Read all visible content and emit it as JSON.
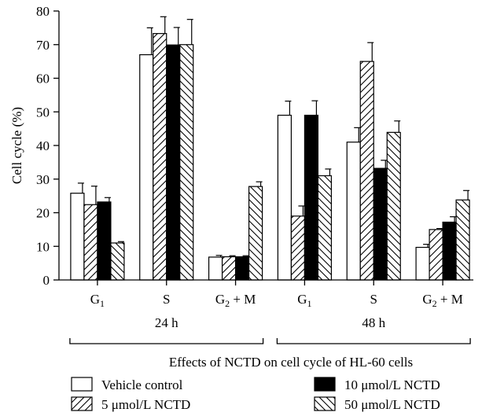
{
  "chart_data": {
    "type": "bar",
    "title": "",
    "xlabel": "Effects of NCTD on cell cycle of HL-60 cells",
    "ylabel": "Cell cycle (%)",
    "ylim": [
      0,
      80
    ],
    "yticks": [
      "0",
      "10",
      "20",
      "30",
      "40",
      "50",
      "60",
      "70",
      "80"
    ],
    "categories": [
      {
        "base": "G",
        "sub": "1",
        "rest": ""
      },
      {
        "base": "S",
        "sub": "",
        "rest": ""
      },
      {
        "base": "G",
        "sub": "2",
        "rest": " + M"
      },
      {
        "base": "G",
        "sub": "1",
        "rest": ""
      },
      {
        "base": "S",
        "sub": "",
        "rest": ""
      },
      {
        "base": "G",
        "sub": "2",
        "rest": " + M"
      }
    ],
    "groups": [
      {
        "label": "24 h",
        "categories": [
          0,
          1,
          2
        ]
      },
      {
        "label": "48 h",
        "categories": [
          3,
          4,
          5
        ]
      }
    ],
    "series": [
      {
        "name": "Vehicle control",
        "pattern": "white",
        "values": [
          25.8,
          67,
          6.8,
          49,
          41,
          9.7
        ],
        "errors": [
          3.0,
          8.0,
          0.5,
          4.2,
          4.3,
          0.9
        ]
      },
      {
        "name": "5 μmol/L NCTD",
        "pattern": "hatch-forward",
        "values": [
          22.4,
          73.3,
          6.9,
          19,
          65,
          15
        ],
        "errors": [
          5.5,
          5.0,
          0.3,
          3.0,
          5.6,
          0.3
        ]
      },
      {
        "name": "10 μmol/L NCTD",
        "pattern": "black",
        "values": [
          23.2,
          69.9,
          6.9,
          49,
          33.2,
          17.2
        ],
        "errors": [
          1.3,
          5.2,
          0.3,
          4.3,
          2.4,
          1.6
        ]
      },
      {
        "name": "50 μmol/L NCTD",
        "pattern": "hatch-back",
        "values": [
          11,
          70,
          27.8,
          31,
          43.9,
          23.8
        ],
        "errors": [
          0.4,
          7.5,
          1.4,
          2.0,
          3.4,
          2.8
        ]
      }
    ],
    "legend": {
      "position": "bottom",
      "columns": 2
    },
    "grid": false,
    "colors": {
      "bar_stroke": "#000000",
      "white_fill": "#ffffff",
      "black_fill": "#000000",
      "hatch": "#000000"
    }
  }
}
